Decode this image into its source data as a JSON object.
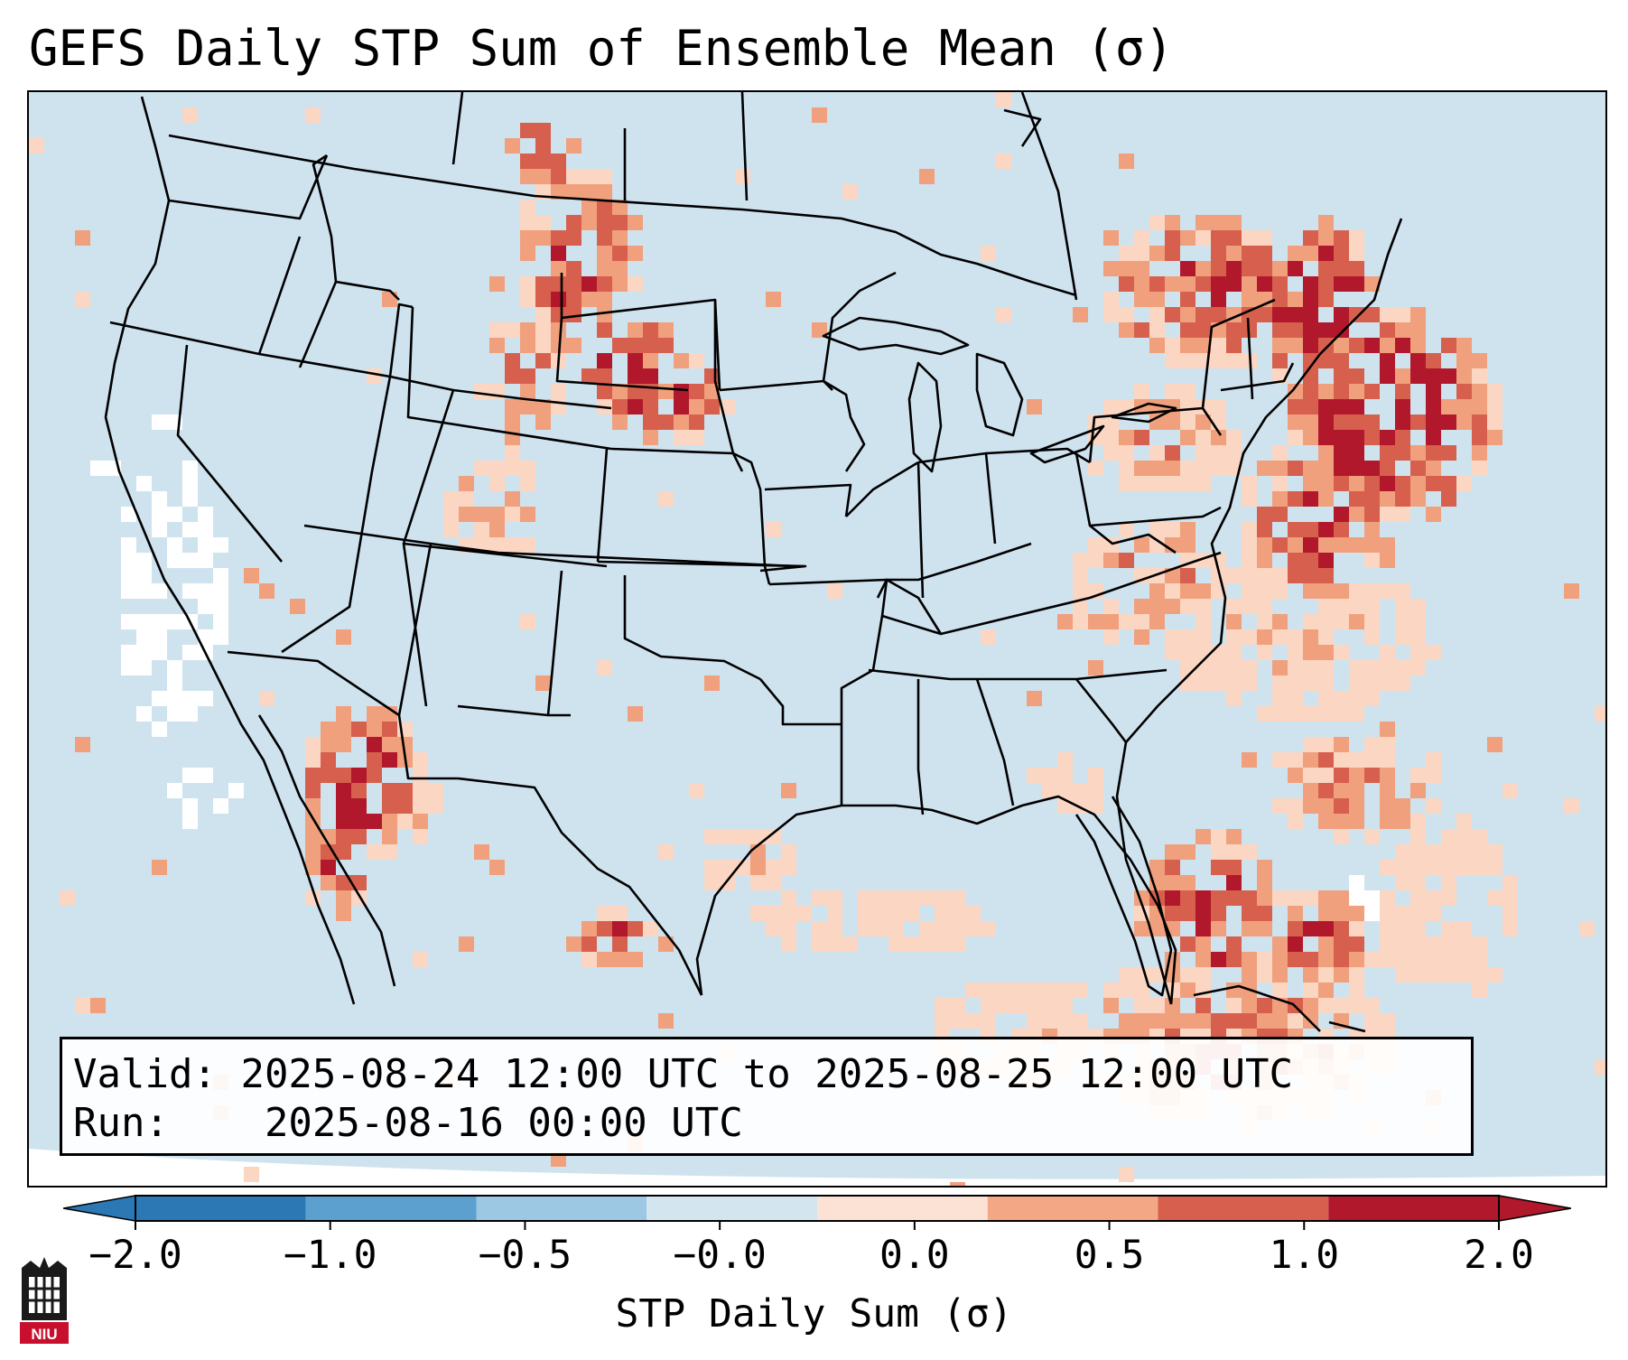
{
  "title": "GEFS Daily STP Sum of Ensemble Mean (σ)",
  "info": {
    "valid_label": "Valid:",
    "valid_value": "2025-08-24 12:00 UTC to 2025-08-25 12:00 UTC",
    "run_label": "Run:",
    "run_value": "2025-08-16 00:00 UTC"
  },
  "colorbar": {
    "label": "STP Daily Sum (σ)",
    "ticks": [
      "−2.0",
      "−1.0",
      "−0.5",
      "−0.0",
      "0.0",
      "0.5",
      "1.0",
      "2.0"
    ],
    "colors": [
      "#2b78b5",
      "#5ca0cf",
      "#9cc8e3",
      "#d3e5ef",
      "#fbe2d5",
      "#f3a784",
      "#d6604d",
      "#b2182b"
    ],
    "extend": "both"
  },
  "colors": {
    "background": "#cfe3ef",
    "neutral": "#d3e5ef",
    "light_pos": "#fbd6c2",
    "mid_pos": "#f0a07c",
    "strong_pos": "#d6604d",
    "extreme_pos": "#b2182b",
    "light_neg": "#9cc8e3",
    "white": "#ffffff"
  },
  "logo": {
    "text": "NIU",
    "name": "NIU logo"
  }
}
